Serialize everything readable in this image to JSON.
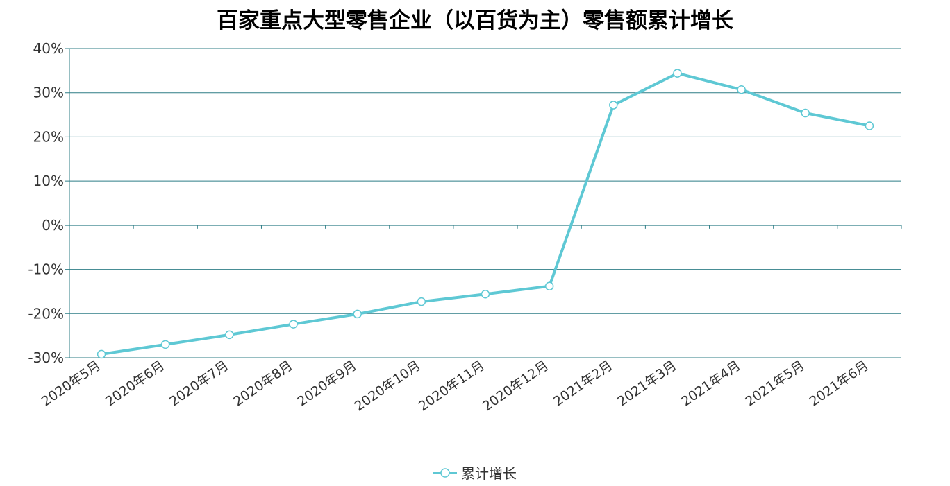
{
  "chart_data": {
    "type": "line",
    "title": "百家重点大型零售企业（以百货为主）零售额累计增长",
    "categories": [
      "2020年5月",
      "2020年6月",
      "2020年7月",
      "2020年8月",
      "2020年9月",
      "2020年10月",
      "2020年11月",
      "2020年12月",
      "2021年2月",
      "2021年3月",
      "2021年4月",
      "2021年5月",
      "2021年6月"
    ],
    "series": [
      {
        "name": "累计增长",
        "values": [
          -29.2,
          -27.0,
          -24.8,
          -22.4,
          -20.1,
          -17.3,
          -15.6,
          -13.8,
          27.2,
          34.4,
          30.7,
          25.4,
          22.5
        ]
      }
    ],
    "ylim": [
      -30,
      40
    ],
    "y_ticks": [
      40,
      30,
      20,
      10,
      0,
      -10,
      -20,
      -30
    ],
    "y_tick_labels": [
      "40%",
      "30%",
      "20%",
      "10%",
      "0%",
      "-10%",
      "-20%",
      "-30%"
    ],
    "grid": true,
    "legend_position": "bottom-center",
    "line_color": "#5ec8d4",
    "grid_color": "#2e7d86"
  }
}
